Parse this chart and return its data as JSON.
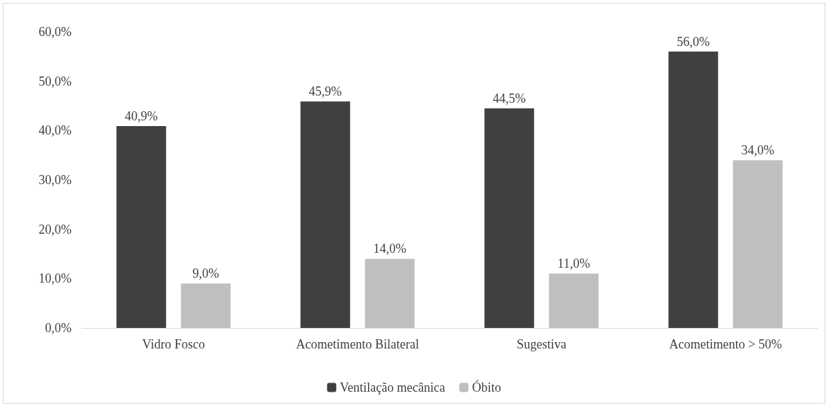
{
  "chart_data": {
    "type": "bar",
    "categories": [
      "Vidro Fosco",
      "Acometimento Bilateral",
      "Sugestiva",
      "Acometimento > 50%"
    ],
    "series": [
      {
        "name": "Ventilação mecânica",
        "color": "#404040",
        "values": [
          40.9,
          45.9,
          44.5,
          56.0
        ],
        "value_labels": [
          "40,9%",
          "45,9%",
          "44,5%",
          "56,0%"
        ]
      },
      {
        "name": "Óbito",
        "color": "#bfbfbf",
        "values": [
          9.0,
          14.0,
          11.0,
          34.0
        ],
        "value_labels": [
          "9,0%",
          "14,0%",
          "11,0%",
          "34,0%"
        ]
      }
    ],
    "ylim": [
      0,
      60
    ],
    "yticks": [
      {
        "value": 0,
        "label": "0,0%"
      },
      {
        "value": 10,
        "label": "10,0%"
      },
      {
        "value": 20,
        "label": "20,0%"
      },
      {
        "value": 30,
        "label": "30,0%"
      },
      {
        "value": 40,
        "label": "40,0%"
      },
      {
        "value": 50,
        "label": "50,0%"
      },
      {
        "value": 60,
        "label": "60,0%"
      }
    ],
    "grid": false,
    "legend": "bottom"
  }
}
